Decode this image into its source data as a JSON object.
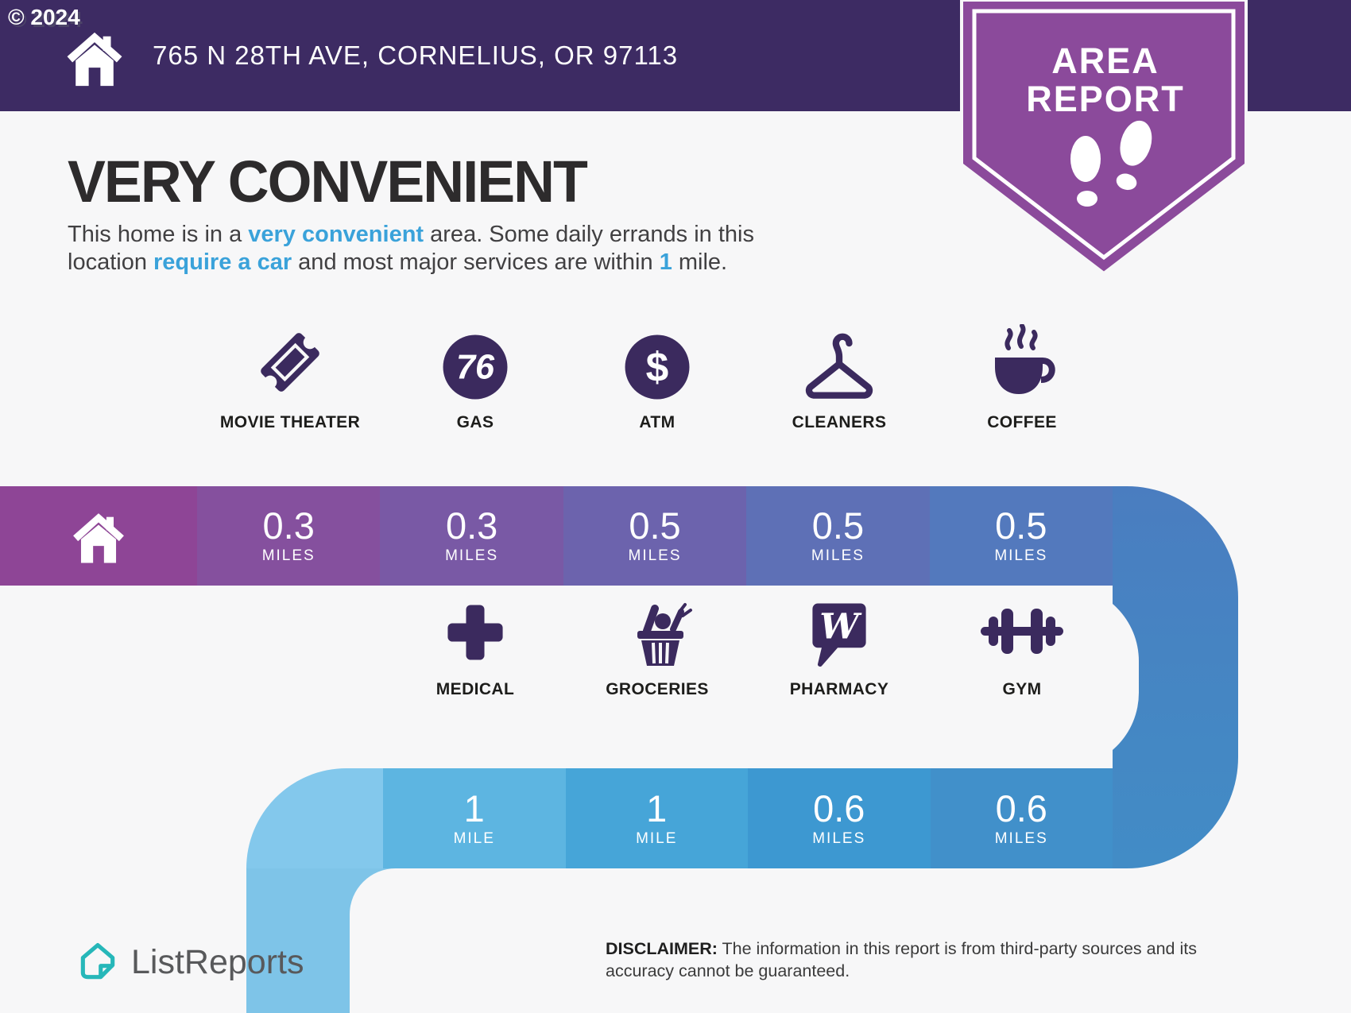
{
  "header": {
    "copyright": "© 2024",
    "address": "765 N 28TH AVE, CORNELIUS, OR 97113",
    "bar_color": "#3d2b63"
  },
  "badge": {
    "line1": "AREA",
    "line2": "REPORT",
    "color": "#8b4a9b"
  },
  "headline": "VERY CONVENIENT",
  "paragraph": {
    "p1": "This home is in a ",
    "h1": "very convenient",
    "p2": " area. Some daily errands in this",
    "p3": "location ",
    "h2": "require a car",
    "p4": " and most major services are within ",
    "h3": "1",
    "p5": " mile.",
    "accent_color": "#3aa2da"
  },
  "icon_color": "#3b2a5e",
  "services_row1": [
    {
      "label": "MOVIE THEATER",
      "icon": "ticket-icon"
    },
    {
      "label": "GAS",
      "icon": "gas-76-icon"
    },
    {
      "label": "ATM",
      "icon": "dollar-circle-icon"
    },
    {
      "label": "CLEANERS",
      "icon": "hanger-icon"
    },
    {
      "label": "COFFEE",
      "icon": "coffee-cup-icon"
    }
  ],
  "services_row2": [
    {
      "label": "MEDICAL",
      "icon": "medical-cross-icon"
    },
    {
      "label": "GROCERIES",
      "icon": "grocery-basket-icon"
    },
    {
      "label": "PHARMACY",
      "icon": "walgreens-w-icon"
    },
    {
      "label": "GYM",
      "icon": "dumbbell-icon"
    }
  ],
  "band1": {
    "home_color": "#8e4596",
    "cells": [
      {
        "value": "0.3",
        "unit": "MILES",
        "color": "#85509e"
      },
      {
        "value": "0.3",
        "unit": "MILES",
        "color": "#7959a5"
      },
      {
        "value": "0.5",
        "unit": "MILES",
        "color": "#6c63ad"
      },
      {
        "value": "0.5",
        "unit": "MILES",
        "color": "#5e70b6"
      },
      {
        "value": "0.5",
        "unit": "MILES",
        "color": "#5379bd"
      }
    ]
  },
  "band2": {
    "cap_color": "#83c8ec",
    "strip_color": "#7ec4e8",
    "cells": [
      {
        "value": "1",
        "unit": "MILE",
        "color": "#5db5e1"
      },
      {
        "value": "1",
        "unit": "MILE",
        "color": "#46a5d8"
      },
      {
        "value": "0.6",
        "unit": "MILES",
        "color": "#3d98d1"
      },
      {
        "value": "0.6",
        "unit": "MILES",
        "color": "#4190ca"
      }
    ]
  },
  "footer": {
    "brand": "ListReports",
    "brand_color": "#26b7b9",
    "disclaimer_label": "DISCLAIMER:",
    "disclaimer_text": " The information in this report is from third-party sources and its accuracy cannot be guaranteed."
  }
}
